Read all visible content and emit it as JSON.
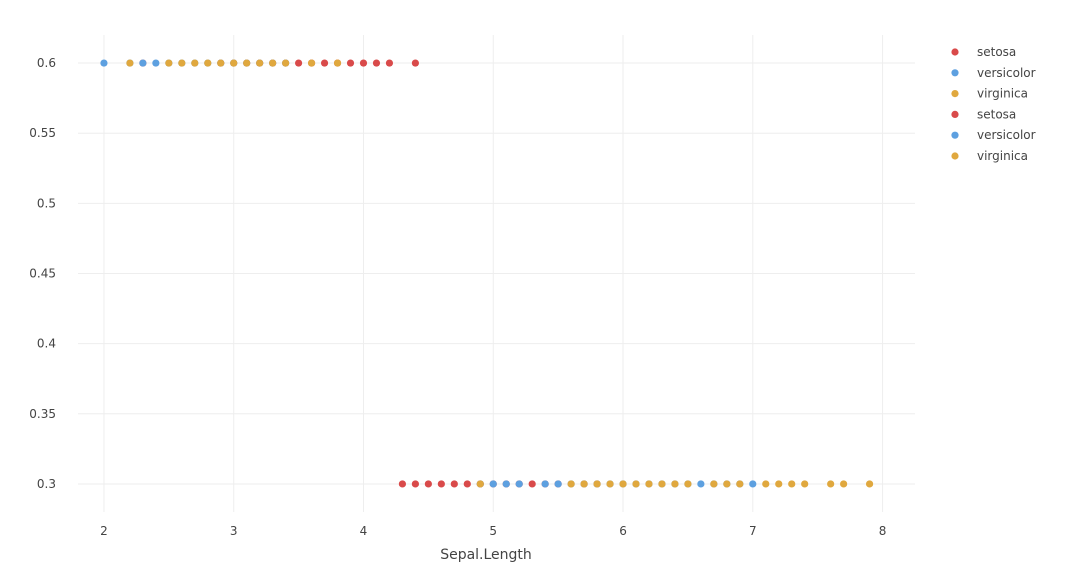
{
  "chart_data": {
    "type": "scatter",
    "title": "",
    "xlabel": "Sepal.Length",
    "ylabel": "",
    "xlim": [
      1.8,
      8.25
    ],
    "ylim": [
      0.28,
      0.62
    ],
    "x_ticks": [
      2,
      3,
      4,
      5,
      6,
      7,
      8
    ],
    "x_tick_labels": [
      "2",
      "3",
      "4",
      "5",
      "6",
      "7",
      "8"
    ],
    "y_ticks": [
      0.3,
      0.35,
      0.4,
      0.45,
      0.5,
      0.55,
      0.6
    ],
    "y_tick_labels": [
      "0.3",
      "0.35",
      "0.4",
      "0.45",
      "0.5",
      "0.55",
      "0.6"
    ],
    "grid": true,
    "legend_position": "top-right",
    "series": [
      {
        "name": "setosa",
        "color": "#d94a4a",
        "x": [
          2.3,
          2.9,
          3.0,
          3.1,
          3.2,
          3.3,
          3.4,
          3.5,
          3.6,
          3.7,
          3.8,
          3.9,
          4.0,
          4.1,
          4.2,
          4.4
        ],
        "y": [
          0.6,
          0.6,
          0.6,
          0.6,
          0.6,
          0.6,
          0.6,
          0.6,
          0.6,
          0.6,
          0.6,
          0.6,
          0.6,
          0.6,
          0.6,
          0.6
        ]
      },
      {
        "name": "versicolor",
        "color": "#5da0e0",
        "x": [
          2.0,
          2.2,
          2.3,
          2.4,
          2.5,
          2.6,
          2.7,
          2.8,
          2.9,
          3.0,
          3.1,
          3.2,
          3.3,
          3.4
        ],
        "y": [
          0.6,
          0.6,
          0.6,
          0.6,
          0.6,
          0.6,
          0.6,
          0.6,
          0.6,
          0.6,
          0.6,
          0.6,
          0.6,
          0.6
        ]
      },
      {
        "name": "virginica",
        "color": "#e0a83e",
        "x": [
          2.2,
          2.5,
          2.6,
          2.7,
          2.8,
          2.9,
          3.0,
          3.1,
          3.2,
          3.3,
          3.4,
          3.6,
          3.8
        ],
        "y": [
          0.6,
          0.6,
          0.6,
          0.6,
          0.6,
          0.6,
          0.6,
          0.6,
          0.6,
          0.6,
          0.6,
          0.6,
          0.6
        ]
      },
      {
        "name": "setosa",
        "color": "#d94a4a",
        "x": [
          4.3,
          4.4,
          4.5,
          4.6,
          4.7,
          4.8,
          4.9,
          5.0,
          5.1,
          5.2,
          5.3,
          5.4,
          5.5,
          5.7,
          5.8
        ],
        "y": [
          0.3,
          0.3,
          0.3,
          0.3,
          0.3,
          0.3,
          0.3,
          0.3,
          0.3,
          0.3,
          0.3,
          0.3,
          0.3,
          0.3,
          0.3
        ]
      },
      {
        "name": "versicolor",
        "color": "#5da0e0",
        "x": [
          4.9,
          5.0,
          5.1,
          5.2,
          5.4,
          5.5,
          5.6,
          5.7,
          5.8,
          5.9,
          6.0,
          6.1,
          6.2,
          6.3,
          6.4,
          6.5,
          6.6,
          6.7,
          6.8,
          6.9,
          7.0
        ],
        "y": [
          0.3,
          0.3,
          0.3,
          0.3,
          0.3,
          0.3,
          0.3,
          0.3,
          0.3,
          0.3,
          0.3,
          0.3,
          0.3,
          0.3,
          0.3,
          0.3,
          0.3,
          0.3,
          0.3,
          0.3,
          0.3
        ]
      },
      {
        "name": "virginica",
        "color": "#e0a83e",
        "x": [
          4.9,
          5.6,
          5.7,
          5.8,
          5.9,
          6.0,
          6.1,
          6.2,
          6.3,
          6.4,
          6.5,
          6.7,
          6.8,
          6.9,
          7.1,
          7.2,
          7.3,
          7.4,
          7.6,
          7.7,
          7.9
        ],
        "y": [
          0.3,
          0.3,
          0.3,
          0.3,
          0.3,
          0.3,
          0.3,
          0.3,
          0.3,
          0.3,
          0.3,
          0.3,
          0.3,
          0.3,
          0.3,
          0.3,
          0.3,
          0.3,
          0.3,
          0.3,
          0.3
        ]
      }
    ]
  }
}
